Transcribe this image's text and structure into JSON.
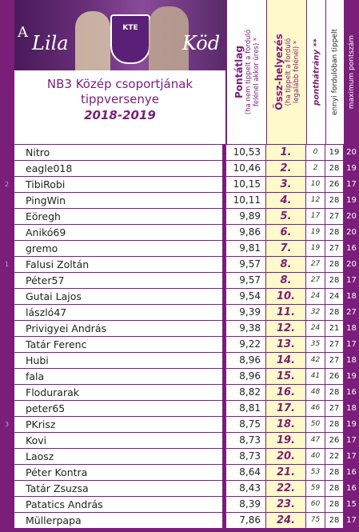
{
  "banner": {
    "letter": "A",
    "left_text": "Lila",
    "right_text": "Köd",
    "crest_text": "KTE"
  },
  "title": {
    "line1": "NB3 Közép csoportjának",
    "line2": "tippversenye",
    "season": "2018-2019"
  },
  "headers": {
    "avg_main": "Pontátlag",
    "avg_sub1": "(ha nem tippelt a forduló",
    "avg_sub2": "felénél akkor üres) *",
    "rank_main": "Össz-helyezés",
    "rank_sub1": "(ha tippelt a forduló",
    "rank_sub2": "legalább felénél) *",
    "bonus_main": "ponthátrány **",
    "tipped": "ennyi fordulóban tippelt",
    "max": "maximum pontszám"
  },
  "rows": [
    {
      "marker": "",
      "name": "Nitro",
      "avg": "10,53",
      "rank": "1.",
      "bonus": "0",
      "tipped": "19",
      "max": "20"
    },
    {
      "marker": "",
      "name": "eagle018",
      "avg": "10,46",
      "rank": "2.",
      "bonus": "2",
      "tipped": "28",
      "max": "19"
    },
    {
      "marker": "2",
      "name": "TibiRobi",
      "avg": "10,15",
      "rank": "3.",
      "bonus": "10",
      "tipped": "26",
      "max": "17"
    },
    {
      "marker": "",
      "name": "PingWin",
      "avg": "10,11",
      "rank": "4.",
      "bonus": "12",
      "tipped": "28",
      "max": "19"
    },
    {
      "marker": "",
      "name": "Eöregh",
      "avg": "9,89",
      "rank": "5.",
      "bonus": "17",
      "tipped": "27",
      "max": "20"
    },
    {
      "marker": "",
      "name": "Anikó69",
      "avg": "9,86",
      "rank": "6.",
      "bonus": "19",
      "tipped": "28",
      "max": "20"
    },
    {
      "marker": "",
      "name": "gremo",
      "avg": "9,81",
      "rank": "7.",
      "bonus": "19",
      "tipped": "27",
      "max": "16"
    },
    {
      "marker": "1",
      "name": "Falusi Zoltán",
      "avg": "9,57",
      "rank": "8.",
      "bonus": "27",
      "tipped": "28",
      "max": "20"
    },
    {
      "marker": "",
      "name": "Péter57",
      "avg": "9,57",
      "rank": "8.",
      "bonus": "27",
      "tipped": "28",
      "max": "17"
    },
    {
      "marker": "",
      "name": "Gutai Lajos",
      "avg": "9,54",
      "rank": "10.",
      "bonus": "24",
      "tipped": "24",
      "max": "18"
    },
    {
      "marker": "",
      "name": "lászló47",
      "avg": "9,39",
      "rank": "11.",
      "bonus": "32",
      "tipped": "28",
      "max": "27"
    },
    {
      "marker": "",
      "name": "Privigyei András",
      "avg": "9,38",
      "rank": "12.",
      "bonus": "24",
      "tipped": "21",
      "max": "18"
    },
    {
      "marker": "",
      "name": "Tatár Ferenc",
      "avg": "9,22",
      "rank": "13.",
      "bonus": "35",
      "tipped": "27",
      "max": "17"
    },
    {
      "marker": "",
      "name": "Hubi",
      "avg": "8,96",
      "rank": "14.",
      "bonus": "42",
      "tipped": "27",
      "max": "18"
    },
    {
      "marker": "",
      "name": "fala",
      "avg": "8,96",
      "rank": "15.",
      "bonus": "41",
      "tipped": "26",
      "max": "19"
    },
    {
      "marker": "",
      "name": "Flodurarak",
      "avg": "8,82",
      "rank": "16.",
      "bonus": "48",
      "tipped": "28",
      "max": "16"
    },
    {
      "marker": "",
      "name": "peter65",
      "avg": "8,81",
      "rank": "17.",
      "bonus": "46",
      "tipped": "27",
      "max": "18"
    },
    {
      "marker": "3",
      "name": "PKrisz",
      "avg": "8,75",
      "rank": "18.",
      "bonus": "50",
      "tipped": "28",
      "max": "19"
    },
    {
      "marker": "",
      "name": "Kovi",
      "avg": "8,73",
      "rank": "19.",
      "bonus": "47",
      "tipped": "26",
      "max": "17"
    },
    {
      "marker": "",
      "name": "Laosz",
      "avg": "8,73",
      "rank": "20.",
      "bonus": "40",
      "tipped": "22",
      "max": "17"
    },
    {
      "marker": "",
      "name": "Péter Kontra",
      "avg": "8,64",
      "rank": "21.",
      "bonus": "53",
      "tipped": "28",
      "max": "16"
    },
    {
      "marker": "",
      "name": "Tatár Zsuzsa",
      "avg": "8,43",
      "rank": "22.",
      "bonus": "59",
      "tipped": "28",
      "max": "16"
    },
    {
      "marker": "",
      "name": "Patatics András",
      "avg": "8,39",
      "rank": "23.",
      "bonus": "60",
      "tipped": "28",
      "max": "15"
    },
    {
      "marker": "",
      "name": "Müllerpapa",
      "avg": "7,86",
      "rank": "24.",
      "bonus": "75",
      "tipped": "28",
      "max": "17"
    }
  ]
}
